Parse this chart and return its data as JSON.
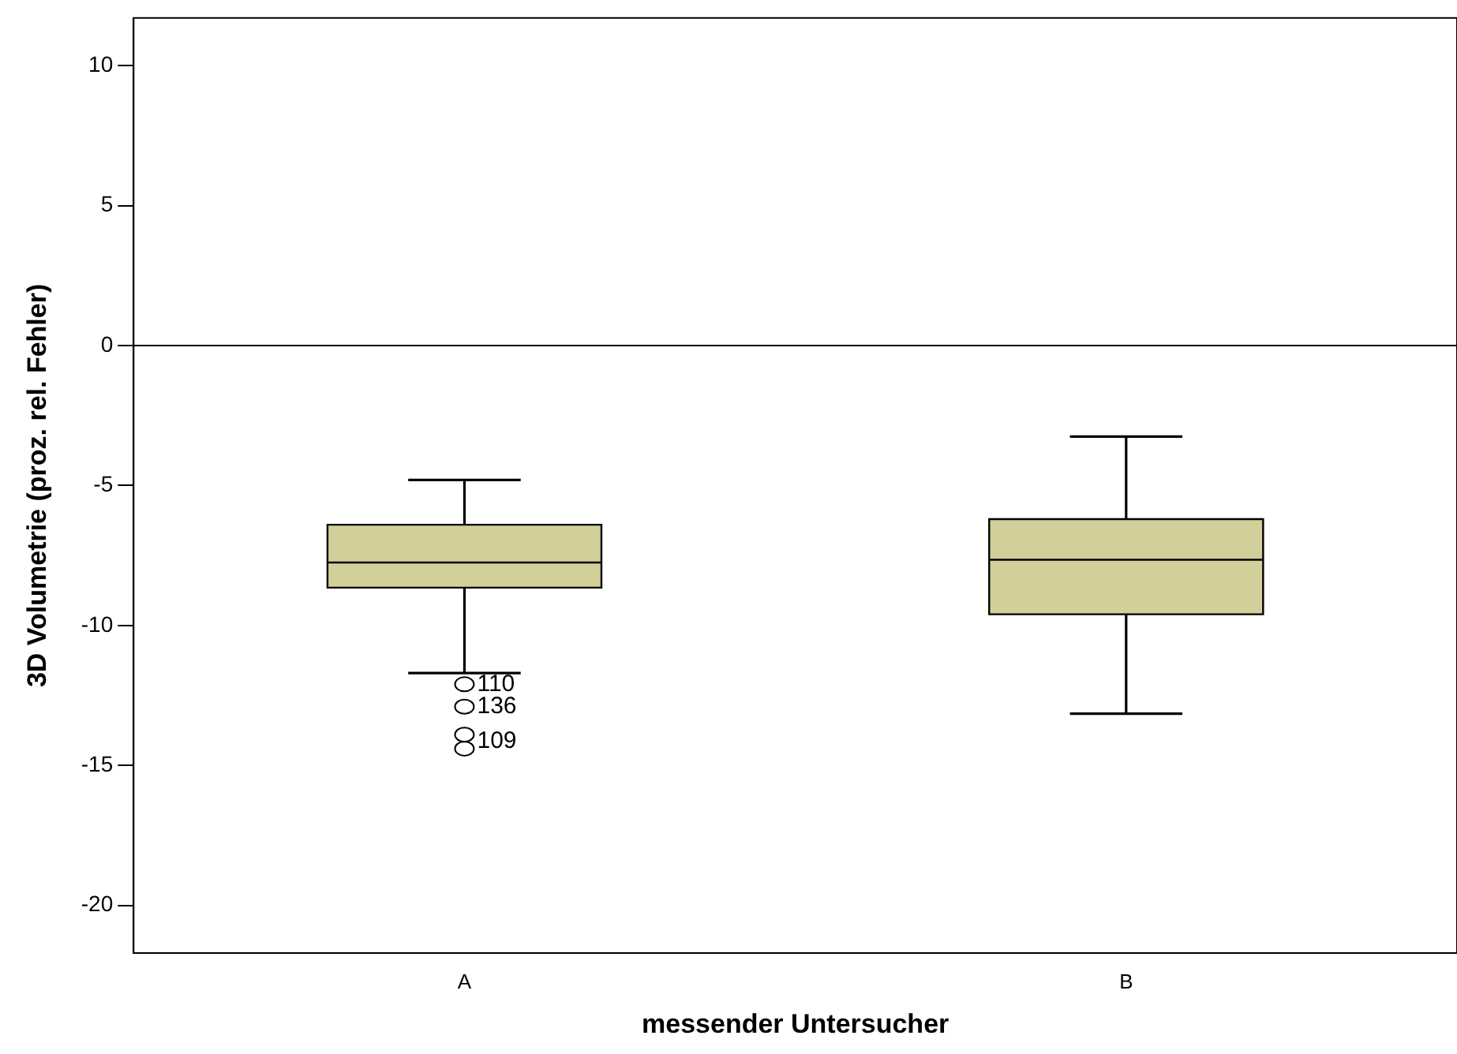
{
  "chart_data": {
    "type": "box",
    "xlabel": "messender Untersucher",
    "ylabel": "3D Volumetrie (proz. rel. Fehler)",
    "categories": [
      "A",
      "B"
    ],
    "boxes": [
      {
        "low": -11.7,
        "q1": -8.65,
        "median": -7.75,
        "q3": -6.4,
        "high": -4.8,
        "outliers": [
          -12.1,
          -12.9,
          -13.9,
          -14.4
        ]
      },
      {
        "low": -13.15,
        "q1": -9.6,
        "median": -7.65,
        "q3": -6.2,
        "high": -3.25
      }
    ],
    "color": "#d3cf9a",
    "ylim": [
      -21.7,
      11.7
    ],
    "yticks": [
      -20,
      -15,
      -10,
      -5,
      0,
      5,
      10
    ],
    "grid": false,
    "legend": false,
    "ref_lines": [
      {
        "axis": "y",
        "value": 0
      }
    ],
    "annotations": [
      "110",
      "136",
      "109"
    ]
  }
}
